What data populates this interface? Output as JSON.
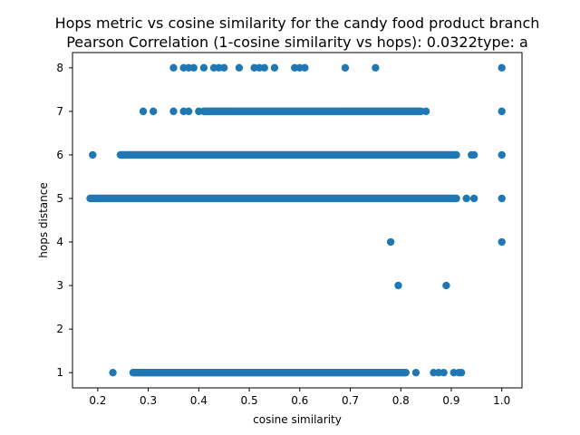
{
  "chart_data": {
    "type": "scatter",
    "title_lines": [
      "Hops metric vs cosine similarity for the candy food product branch",
      "Pearson Correlation (1-cosine similarity vs hops): 0.0322type: a"
    ],
    "xlabel": "cosine similarity",
    "ylabel": "hops distance",
    "xlim": [
      0.15,
      1.04
    ],
    "ylim": [
      0.65,
      8.35
    ],
    "x_ticks": [
      0.2,
      0.3,
      0.4,
      0.5,
      0.6,
      0.7,
      0.8,
      0.9,
      1.0
    ],
    "x_tick_labels": [
      "0.2",
      "0.3",
      "0.4",
      "0.5",
      "0.6",
      "0.7",
      "0.8",
      "0.9",
      "1.0"
    ],
    "y_ticks": [
      1,
      2,
      3,
      4,
      5,
      6,
      7,
      8
    ],
    "y_tick_labels": [
      "1",
      "2",
      "3",
      "4",
      "5",
      "6",
      "7",
      "8"
    ],
    "grid": false,
    "marker_color": "#1f77b4",
    "rows": [
      {
        "y": 8,
        "dense": [],
        "points": [
          0.35,
          0.37,
          0.38,
          0.39,
          0.41,
          0.43,
          0.44,
          0.45,
          0.48,
          0.51,
          0.52,
          0.53,
          0.55,
          0.59,
          0.6,
          0.61,
          0.69,
          0.75,
          1.0
        ]
      },
      {
        "y": 7,
        "dense": [
          [
            0.41,
            0.84
          ]
        ],
        "points": [
          0.29,
          0.31,
          0.35,
          0.37,
          0.38,
          0.4,
          0.85,
          1.0
        ]
      },
      {
        "y": 6,
        "dense": [
          [
            0.245,
            0.91
          ]
        ],
        "points": [
          0.19,
          0.94,
          0.945,
          1.0
        ]
      },
      {
        "y": 5,
        "dense": [
          [
            0.185,
            0.91
          ]
        ],
        "points": [
          0.93,
          0.945,
          1.0
        ]
      },
      {
        "y": 4,
        "dense": [],
        "points": [
          0.78,
          1.0
        ]
      },
      {
        "y": 3,
        "dense": [],
        "points": [
          0.795,
          0.89
        ]
      },
      {
        "y": 1,
        "dense": [
          [
            0.27,
            0.81
          ]
        ],
        "points": [
          0.23,
          0.83,
          0.865,
          0.875,
          0.885,
          0.905,
          0.915,
          0.92
        ]
      }
    ]
  }
}
